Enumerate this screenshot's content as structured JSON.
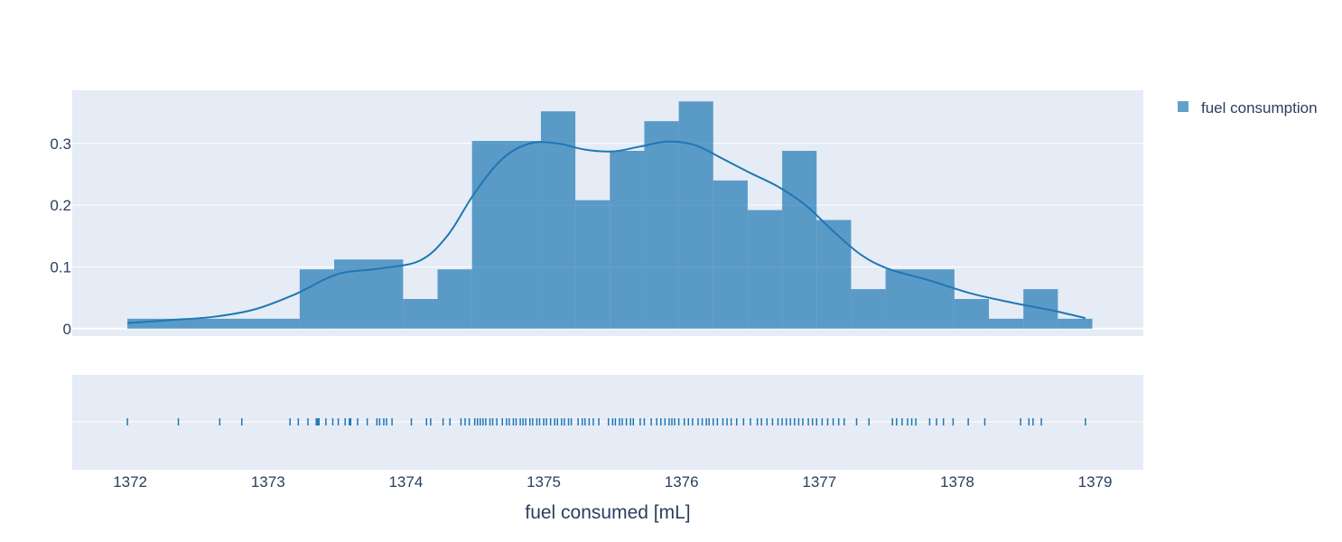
{
  "chart_data": {
    "type": "histogram",
    "xlabel": "fuel consumed [mL]",
    "x_ticks": [
      "1372",
      "1373",
      "1374",
      "1375",
      "1376",
      "1377",
      "1378",
      "1379"
    ],
    "x_tick_values": [
      1372,
      1373,
      1374,
      1375,
      1376,
      1377,
      1378,
      1379
    ],
    "y_ticks": [
      "0",
      "0.1",
      "0.2",
      "0.3"
    ],
    "y_tick_values": [
      0,
      0.1,
      0.2,
      0.3
    ],
    "xlim": [
      1371.58,
      1379.35
    ],
    "ylim": [
      -0.012,
      0.386
    ],
    "grid": true,
    "legend_position": "top-right",
    "series": [
      {
        "name": "fuel consumption",
        "kind": "histogram",
        "color": "#1f77b4",
        "bins": [
          {
            "x0": 1371.98,
            "x1": 1373.23,
            "y": 0.016
          },
          {
            "x0": 1373.23,
            "x1": 1373.48,
            "y": 0.096
          },
          {
            "x0": 1373.48,
            "x1": 1373.98,
            "y": 0.112
          },
          {
            "x0": 1373.98,
            "x1": 1374.23,
            "y": 0.048
          },
          {
            "x0": 1374.23,
            "x1": 1374.48,
            "y": 0.096
          },
          {
            "x0": 1374.48,
            "x1": 1374.98,
            "y": 0.304
          },
          {
            "x0": 1374.98,
            "x1": 1375.23,
            "y": 0.352
          },
          {
            "x0": 1375.23,
            "x1": 1375.48,
            "y": 0.208
          },
          {
            "x0": 1375.48,
            "x1": 1375.73,
            "y": 0.288
          },
          {
            "x0": 1375.73,
            "x1": 1375.98,
            "y": 0.336
          },
          {
            "x0": 1375.98,
            "x1": 1376.23,
            "y": 0.368
          },
          {
            "x0": 1376.23,
            "x1": 1376.48,
            "y": 0.24
          },
          {
            "x0": 1376.48,
            "x1": 1376.73,
            "y": 0.192
          },
          {
            "x0": 1376.73,
            "x1": 1376.98,
            "y": 0.288
          },
          {
            "x0": 1376.98,
            "x1": 1377.23,
            "y": 0.176
          },
          {
            "x0": 1377.23,
            "x1": 1377.48,
            "y": 0.064
          },
          {
            "x0": 1377.48,
            "x1": 1377.98,
            "y": 0.096
          },
          {
            "x0": 1377.98,
            "x1": 1378.23,
            "y": 0.048
          },
          {
            "x0": 1378.23,
            "x1": 1378.48,
            "y": 0.016
          },
          {
            "x0": 1378.48,
            "x1": 1378.73,
            "y": 0.064
          },
          {
            "x0": 1378.73,
            "x1": 1378.98,
            "y": 0.016
          }
        ]
      },
      {
        "kind": "density_curve",
        "color": "#1f77b4",
        "points": [
          [
            1371.98,
            0.009
          ],
          [
            1372.3,
            0.014
          ],
          [
            1372.6,
            0.019
          ],
          [
            1372.9,
            0.031
          ],
          [
            1373.2,
            0.056
          ],
          [
            1373.5,
            0.088
          ],
          [
            1373.8,
            0.097
          ],
          [
            1374.1,
            0.11
          ],
          [
            1374.3,
            0.15
          ],
          [
            1374.5,
            0.22
          ],
          [
            1374.7,
            0.275
          ],
          [
            1374.9,
            0.3
          ],
          [
            1375.1,
            0.3
          ],
          [
            1375.3,
            0.29
          ],
          [
            1375.5,
            0.287
          ],
          [
            1375.7,
            0.295
          ],
          [
            1375.9,
            0.303
          ],
          [
            1376.1,
            0.297
          ],
          [
            1376.3,
            0.275
          ],
          [
            1376.5,
            0.252
          ],
          [
            1376.7,
            0.23
          ],
          [
            1376.9,
            0.2
          ],
          [
            1377.1,
            0.158
          ],
          [
            1377.3,
            0.12
          ],
          [
            1377.5,
            0.097
          ],
          [
            1377.8,
            0.078
          ],
          [
            1378.1,
            0.057
          ],
          [
            1378.4,
            0.042
          ],
          [
            1378.7,
            0.029
          ],
          [
            1378.93,
            0.017
          ]
        ]
      },
      {
        "kind": "rug",
        "color": "#1f77b4",
        "points": [
          1371.98,
          1372.35,
          1372.65,
          1372.81,
          1373.16,
          1373.22,
          1373.29,
          1373.35,
          1373.36,
          1373.37,
          1373.42,
          1373.47,
          1373.51,
          1373.56,
          1373.59,
          1373.6,
          1373.65,
          1373.72,
          1373.79,
          1373.81,
          1373.84,
          1373.86,
          1373.9,
          1374.04,
          1374.15,
          1374.18,
          1374.27,
          1374.32,
          1374.4,
          1374.43,
          1374.46,
          1374.5,
          1374.52,
          1374.54,
          1374.56,
          1374.58,
          1374.61,
          1374.63,
          1374.66,
          1374.7,
          1374.73,
          1374.75,
          1374.78,
          1374.8,
          1374.83,
          1374.85,
          1374.87,
          1374.9,
          1374.92,
          1374.95,
          1374.97,
          1375.0,
          1375.02,
          1375.05,
          1375.08,
          1375.1,
          1375.13,
          1375.15,
          1375.18,
          1375.2,
          1375.25,
          1375.28,
          1375.3,
          1375.33,
          1375.36,
          1375.4,
          1375.47,
          1375.5,
          1375.52,
          1375.55,
          1375.57,
          1375.6,
          1375.63,
          1375.65,
          1375.7,
          1375.73,
          1375.78,
          1375.82,
          1375.85,
          1375.88,
          1375.91,
          1375.93,
          1375.95,
          1375.98,
          1376.02,
          1376.05,
          1376.08,
          1376.12,
          1376.15,
          1376.18,
          1376.2,
          1376.23,
          1376.26,
          1376.3,
          1376.33,
          1376.36,
          1376.4,
          1376.45,
          1376.5,
          1376.55,
          1376.58,
          1376.62,
          1376.66,
          1376.7,
          1376.73,
          1376.76,
          1376.79,
          1376.82,
          1376.85,
          1376.88,
          1376.92,
          1376.95,
          1376.98,
          1377.02,
          1377.06,
          1377.1,
          1377.14,
          1377.18,
          1377.27,
          1377.36,
          1377.53,
          1377.56,
          1377.6,
          1377.64,
          1377.67,
          1377.7,
          1377.8,
          1377.85,
          1377.9,
          1377.97,
          1378.08,
          1378.2,
          1378.46,
          1378.52,
          1378.55,
          1378.61,
          1378.93
        ]
      }
    ]
  }
}
